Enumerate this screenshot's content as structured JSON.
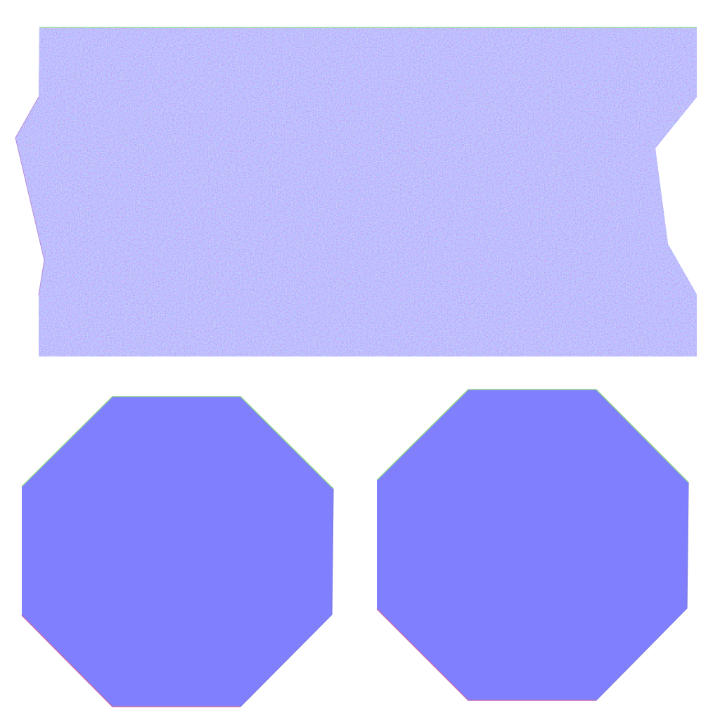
{
  "texture_sheet": {
    "background_color": "#ffffff",
    "base_normal_color": "#8080ff",
    "edge_tint_green": "#7fff7f",
    "edge_tint_red": "#ff7f7f",
    "shapes": [
      {
        "id": "slab-panel",
        "kind": "irregular-slab",
        "surface": "noisy-normal"
      },
      {
        "id": "octagon-left",
        "kind": "octagon",
        "surface": "flat-normal"
      },
      {
        "id": "octagon-right",
        "kind": "octagon",
        "surface": "flat-normal"
      }
    ]
  }
}
